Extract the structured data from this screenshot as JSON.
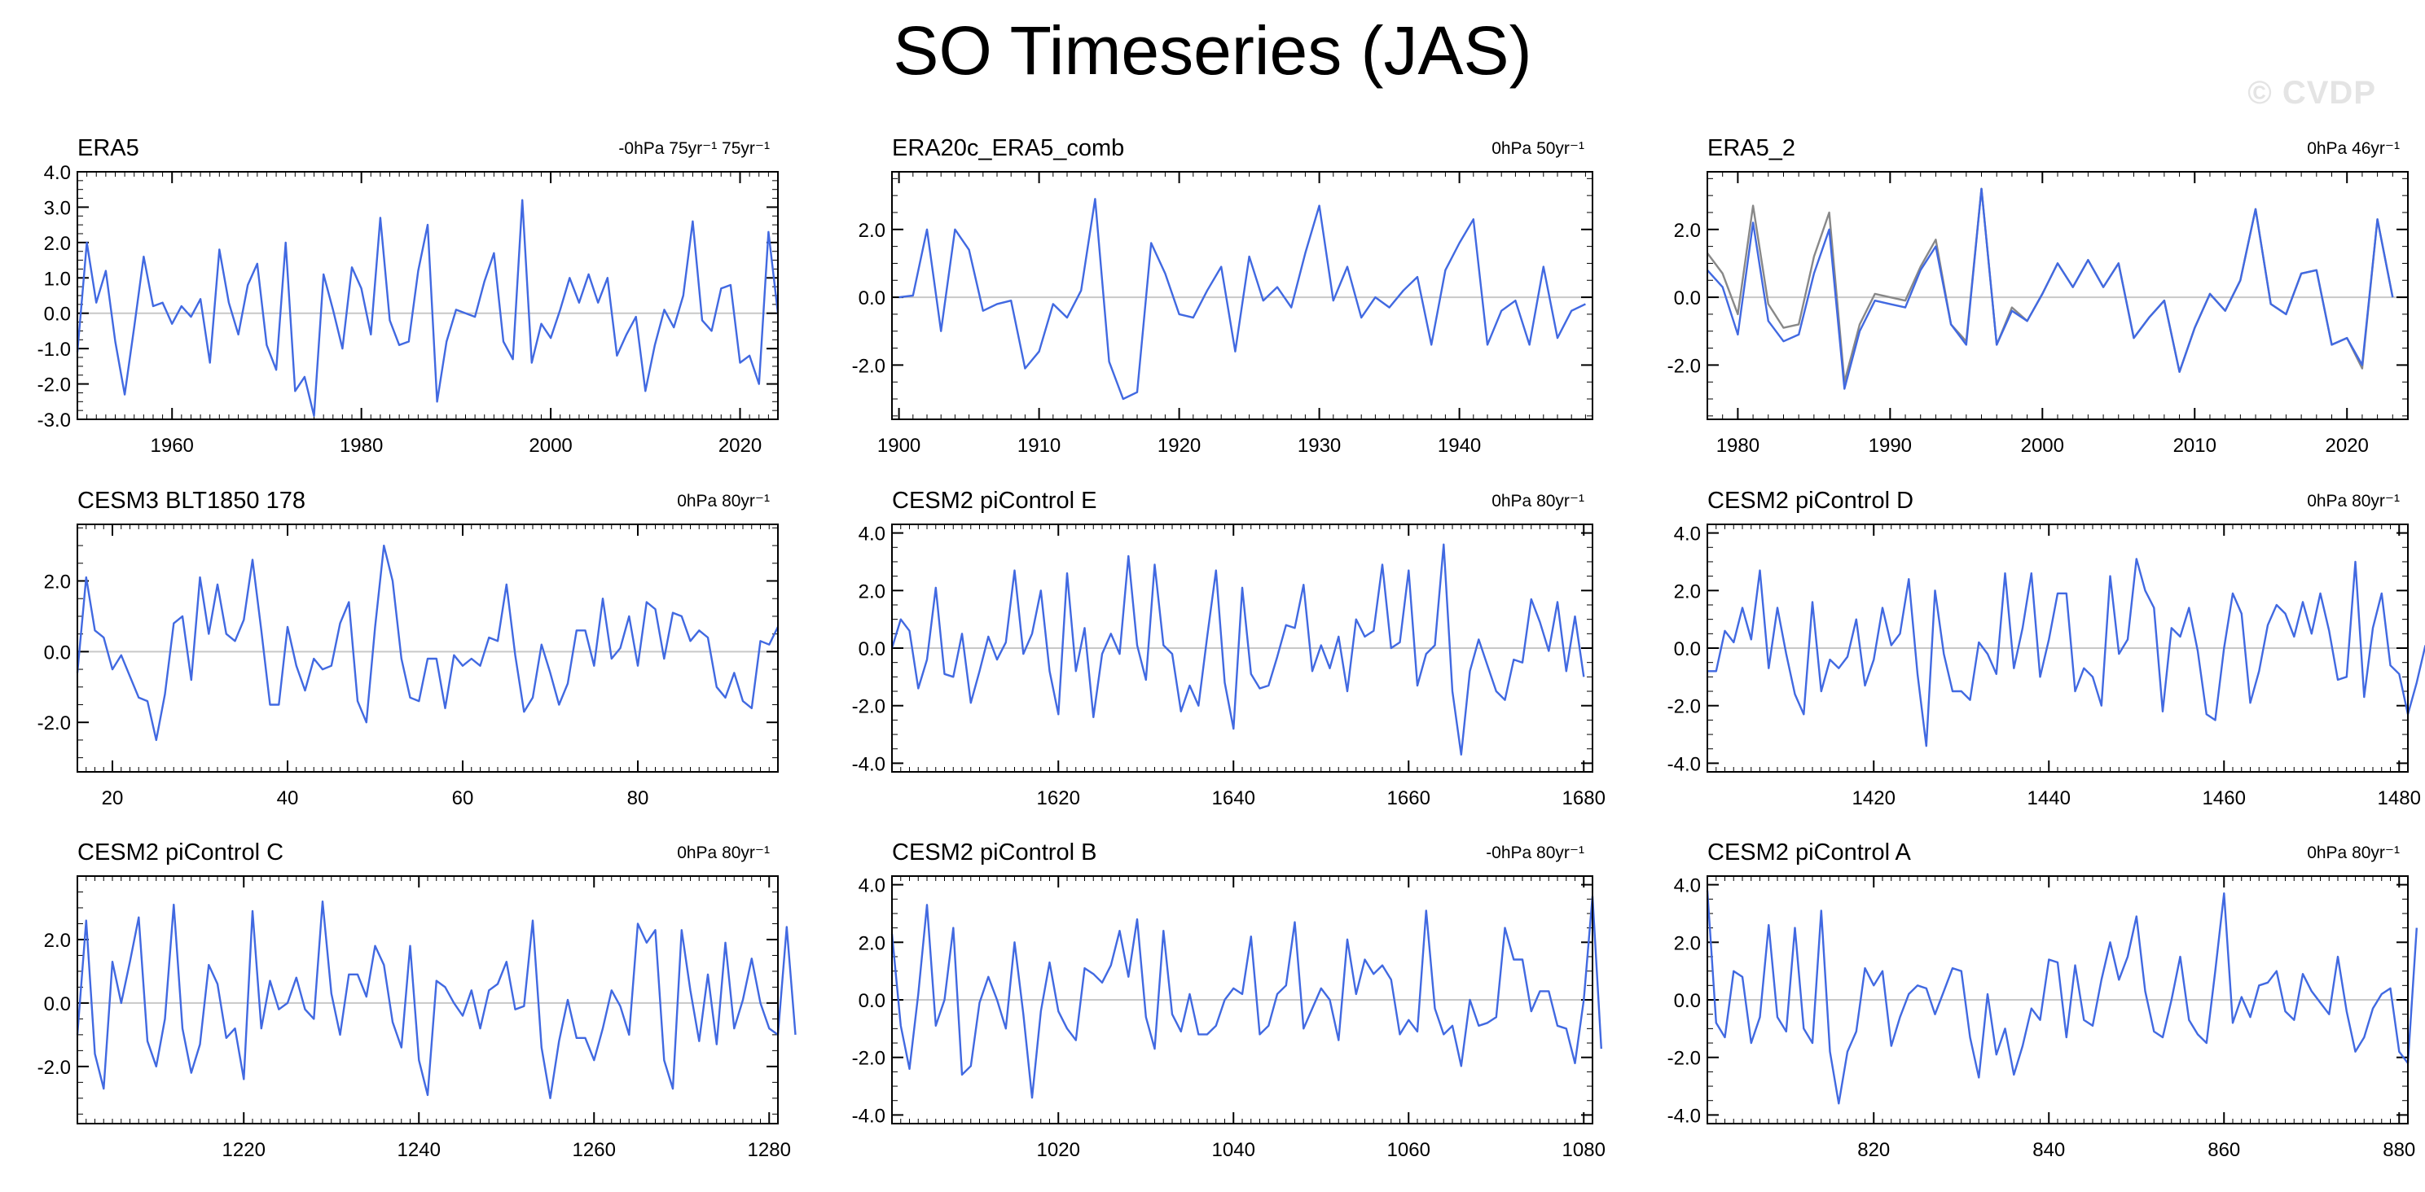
{
  "title": "SO Timeseries (JAS)",
  "watermark": "© CVDP",
  "colors": {
    "primary_line": "#4169e1",
    "secondary_line": "#888888",
    "zero_line": "#c8c8c8",
    "axis": "#000000"
  },
  "chart_data": [
    {
      "type": "line",
      "title": "ERA5",
      "subtitle_right": "-0hPa 75yr⁻¹ 75yr⁻¹",
      "xlim": [
        1950,
        2024
      ],
      "ylim": [
        -3,
        4
      ],
      "grid": false,
      "xticks": [
        1960,
        1980,
        2000,
        2020
      ],
      "xtick_labels": [
        "1960",
        "1980",
        "2000",
        "2020"
      ],
      "yticks": [
        -3,
        -2,
        -1,
        0,
        1,
        2,
        3,
        4
      ],
      "ytick_labels": [
        "-3.0",
        "-2.0",
        "-1.0",
        "0.0",
        "1.0",
        "2.0",
        "3.0",
        "4.0"
      ],
      "series": [
        {
          "name": "ERA5",
          "color": "#4169e1",
          "x_start": 1950,
          "x_step": 1,
          "values": [
            -1.1,
            2.0,
            0.3,
            1.2,
            -0.8,
            -2.3,
            -0.4,
            1.6,
            0.2,
            0.3,
            -0.3,
            0.2,
            -0.1,
            0.4,
            -1.4,
            1.8,
            0.3,
            -0.6,
            0.8,
            1.4,
            -0.9,
            -1.6,
            2.0,
            -2.2,
            -1.8,
            -2.9,
            1.1,
            0.1,
            -1.0,
            1.3,
            0.7,
            -0.6,
            2.7,
            -0.2,
            -0.9,
            -0.8,
            1.2,
            2.5,
            -2.5,
            -0.8,
            0.1,
            0.0,
            -0.1,
            0.9,
            1.7,
            -0.8,
            -1.3,
            3.2,
            -1.4,
            -0.3,
            -0.7,
            0.1,
            1.0,
            0.3,
            1.1,
            0.3,
            1.0,
            -1.2,
            -0.6,
            -0.1,
            -2.2,
            -0.9,
            0.1,
            -0.4,
            0.5,
            2.6,
            -0.2,
            -0.5,
            0.7,
            0.8,
            -1.4,
            -1.2,
            -2.0,
            2.3,
            0.0
          ]
        }
      ]
    },
    {
      "type": "line",
      "title": "ERA20c_ERA5_comb",
      "subtitle_right": "0hPa 50yr⁻¹",
      "xlim": [
        1899.5,
        1949.5
      ],
      "ylim": [
        -3.6,
        3.7
      ],
      "grid": false,
      "xticks": [
        1900,
        1910,
        1920,
        1930,
        1940
      ],
      "xtick_labels": [
        "1900",
        "1910",
        "1920",
        "1930",
        "1940"
      ],
      "yticks": [
        -2,
        0,
        2
      ],
      "ytick_labels": [
        "-2.0",
        "0.0",
        "2.0"
      ],
      "series": [
        {
          "name": "ERA20c_ERA5_comb",
          "color": "#4169e1",
          "x_start": 1900,
          "x_step": 1,
          "values": [
            0.0,
            0.05,
            2.0,
            -1.0,
            2.0,
            1.4,
            -0.4,
            -0.2,
            -0.1,
            -2.1,
            -1.6,
            -0.2,
            -0.6,
            0.2,
            2.9,
            -1.9,
            -3.0,
            -2.8,
            1.6,
            0.7,
            -0.5,
            -0.6,
            0.2,
            0.9,
            -1.6,
            1.2,
            -0.1,
            0.3,
            -0.3,
            1.3,
            2.7,
            -0.1,
            0.9,
            -0.6,
            0.0,
            -0.3,
            0.2,
            0.6,
            -1.4,
            0.8,
            1.6,
            2.3,
            -1.4,
            -0.4,
            -0.1,
            -1.4,
            0.9,
            -1.2,
            -0.4,
            -0.2
          ]
        }
      ]
    },
    {
      "type": "line",
      "title": "ERA5_2",
      "subtitle_right": "0hPa 46yr⁻¹",
      "xlim": [
        1978,
        2024
      ],
      "ylim": [
        -3.6,
        3.7
      ],
      "grid": false,
      "xticks": [
        1980,
        1990,
        2000,
        2010,
        2020
      ],
      "xtick_labels": [
        "1980",
        "1990",
        "2000",
        "2010",
        "2020"
      ],
      "yticks": [
        -2,
        0,
        2
      ],
      "ytick_labels": [
        "-2.0",
        "0.0",
        "2.0"
      ],
      "series": [
        {
          "name": "ERA5_2",
          "color": "#4169e1",
          "x_start": 1978,
          "x_step": 1,
          "values": [
            0.8,
            0.3,
            -1.1,
            2.2,
            -0.7,
            -1.3,
            -1.1,
            0.7,
            2.0,
            -2.7,
            -1.0,
            -0.1,
            -0.2,
            -0.3,
            0.8,
            1.5,
            -0.8,
            -1.4,
            3.2,
            -1.4,
            -0.4,
            -0.7,
            0.1,
            1.0,
            0.3,
            1.1,
            0.3,
            1.0,
            -1.2,
            -0.6,
            -0.1,
            -2.2,
            -0.9,
            0.1,
            -0.4,
            0.5,
            2.6,
            -0.2,
            -0.5,
            0.7,
            0.8,
            -1.4,
            -1.2,
            -2.0,
            2.3,
            0.0
          ]
        },
        {
          "name": "ERA5_2 overlay",
          "color": "#888888",
          "x_start": 1978,
          "x_step": 1,
          "values": [
            1.3,
            0.7,
            -0.5,
            2.7,
            -0.2,
            -0.9,
            -0.8,
            1.2,
            2.5,
            -2.5,
            -0.8,
            0.1,
            0.0,
            -0.1,
            0.9,
            1.7,
            -0.8,
            -1.3,
            3.2,
            -1.4,
            -0.3,
            -0.7,
            0.1,
            1.0,
            0.3,
            1.1,
            0.3,
            1.0,
            -1.2,
            -0.6,
            -0.1,
            -2.2,
            -0.9,
            0.1,
            -0.4,
            0.5,
            2.6,
            -0.2,
            -0.5,
            0.7,
            0.8,
            -1.4,
            -1.2,
            -2.1,
            2.3,
            0.0
          ]
        }
      ]
    },
    {
      "type": "line",
      "title": "CESM3 BLT1850 178",
      "subtitle_right": "0hPa 80yr⁻¹",
      "xlim": [
        16,
        96
      ],
      "ylim": [
        -3.4,
        3.6
      ],
      "grid": false,
      "xticks": [
        20,
        40,
        60,
        80
      ],
      "xtick_labels": [
        "20",
        "40",
        "60",
        "80"
      ],
      "yticks": [
        -2,
        0,
        2
      ],
      "ytick_labels": [
        "-2.0",
        "0.0",
        "2.0"
      ],
      "series": [
        {
          "name": "CESM3 BLT1850 178",
          "color": "#4169e1",
          "x_start": 16,
          "x_step": 1,
          "values": [
            -0.6,
            2.1,
            0.6,
            0.4,
            -0.5,
            -0.1,
            -0.7,
            -1.3,
            -1.4,
            -2.5,
            -1.2,
            0.8,
            1.0,
            -0.8,
            2.1,
            0.5,
            1.9,
            0.5,
            0.3,
            0.9,
            2.6,
            0.6,
            -1.5,
            -1.5,
            0.7,
            -0.4,
            -1.1,
            -0.2,
            -0.5,
            -0.4,
            0.8,
            1.4,
            -1.4,
            -2.0,
            0.7,
            3.0,
            2.0,
            -0.2,
            -1.3,
            -1.4,
            -0.2,
            -0.2,
            -1.6,
            -0.1,
            -0.4,
            -0.2,
            -0.4,
            0.4,
            0.3,
            1.9,
            -0.1,
            -1.7,
            -1.3,
            0.2,
            -0.6,
            -1.5,
            -0.9,
            0.6,
            0.6,
            -0.4,
            1.5,
            -0.2,
            0.1,
            1.0,
            -0.4,
            1.4,
            1.2,
            -0.2,
            1.1,
            1.0,
            0.3,
            0.6,
            0.4,
            -1.0,
            -1.3,
            -0.6,
            -1.4,
            -1.6,
            0.3,
            0.2,
            0.7
          ]
        }
      ]
    },
    {
      "type": "line",
      "title": "CESM2 piControl E",
      "subtitle_right": "0hPa 80yr⁻¹",
      "xlim": [
        1601,
        1681
      ],
      "ylim": [
        -4.3,
        4.3
      ],
      "grid": false,
      "xticks": [
        1620,
        1640,
        1660,
        1680
      ],
      "xtick_labels": [
        "1620",
        "1640",
        "1660",
        "1680"
      ],
      "yticks": [
        -4,
        -2,
        0,
        2,
        4
      ],
      "ytick_labels": [
        "-4.0",
        "-2.0",
        "0.0",
        "2.0",
        "4.0"
      ],
      "series": [
        {
          "name": "CESM2 piControl E",
          "color": "#4169e1",
          "x_start": 1601,
          "x_step": 1,
          "values": [
            0.0,
            1.0,
            0.6,
            -1.4,
            -0.4,
            2.1,
            -0.9,
            -1.0,
            0.5,
            -1.9,
            -0.8,
            0.4,
            -0.4,
            0.2,
            2.7,
            -0.2,
            0.5,
            2.0,
            -0.8,
            -2.3,
            2.6,
            -0.8,
            0.7,
            -2.4,
            -0.2,
            0.5,
            -0.2,
            3.2,
            0.1,
            -1.1,
            2.9,
            0.1,
            -0.2,
            -2.2,
            -1.3,
            -2.0,
            0.4,
            2.7,
            -1.2,
            -2.8,
            2.1,
            -0.9,
            -1.4,
            -1.3,
            -0.3,
            0.8,
            0.7,
            2.2,
            -0.8,
            0.1,
            -0.7,
            0.4,
            -1.5,
            1.0,
            0.4,
            0.6,
            2.9,
            0.0,
            0.2,
            2.7,
            -1.3,
            -0.2,
            0.1,
            3.6,
            -1.5,
            -3.7,
            -0.8,
            0.3,
            -0.6,
            -1.5,
            -1.8,
            -0.4,
            -0.5,
            1.7,
            0.9,
            -0.1,
            1.6,
            -0.8,
            1.1,
            -1.0
          ]
        }
      ]
    },
    {
      "type": "line",
      "title": "CESM2 piControl D",
      "subtitle_right": "0hPa 80yr⁻¹",
      "xlim": [
        1401,
        1481
      ],
      "ylim": [
        -4.3,
        4.3
      ],
      "grid": false,
      "xticks": [
        1420,
        1440,
        1460,
        1480
      ],
      "xtick_labels": [
        "1420",
        "1440",
        "1460",
        "1480"
      ],
      "yticks": [
        -4,
        -2,
        0,
        2,
        4
      ],
      "ytick_labels": [
        "-4.0",
        "-2.0",
        "0.0",
        "2.0",
        "4.0"
      ],
      "series": [
        {
          "name": "CESM2 piControl D",
          "color": "#4169e1",
          "x_start": 1401,
          "x_step": 1,
          "values": [
            -0.8,
            -0.8,
            0.6,
            0.2,
            1.4,
            0.3,
            2.7,
            -0.7,
            1.4,
            -0.2,
            -1.6,
            -2.3,
            1.6,
            -1.5,
            -0.4,
            -0.7,
            -0.3,
            1.0,
            -1.3,
            -0.4,
            1.4,
            0.1,
            0.5,
            2.4,
            -0.9,
            -3.4,
            2.0,
            -0.2,
            -1.5,
            -1.5,
            -1.8,
            0.2,
            -0.2,
            -0.9,
            2.6,
            -0.7,
            0.7,
            2.6,
            -1.0,
            0.3,
            1.9,
            1.9,
            -1.5,
            -0.7,
            -1.0,
            -2.0,
            2.5,
            -0.2,
            0.3,
            3.1,
            2.0,
            1.4,
            -2.2,
            0.7,
            0.4,
            1.4,
            -0.1,
            -2.3,
            -2.5,
            0.0,
            1.9,
            1.2,
            -1.9,
            -0.8,
            0.8,
            1.5,
            1.2,
            0.4,
            1.6,
            0.5,
            1.9,
            0.6,
            -1.1,
            -1.0,
            3.0,
            -1.7,
            0.7,
            1.9,
            -0.6,
            -0.9,
            -2.3,
            -1.2,
            0.1
          ]
        }
      ]
    },
    {
      "type": "line",
      "title": "CESM2 piControl C",
      "subtitle_right": "0hPa 80yr⁻¹",
      "xlim": [
        1201,
        1281
      ],
      "ylim": [
        -3.8,
        4.0
      ],
      "grid": false,
      "xticks": [
        1220,
        1240,
        1260,
        1280
      ],
      "xtick_labels": [
        "1220",
        "1240",
        "1260",
        "1280"
      ],
      "yticks": [
        -2,
        0,
        2
      ],
      "ytick_labels": [
        "-2.0",
        "0.0",
        "2.0"
      ],
      "series": [
        {
          "name": "CESM2 piControl C",
          "color": "#4169e1",
          "x_start": 1201,
          "x_step": 1,
          "values": [
            -1.0,
            2.6,
            -1.6,
            -2.7,
            1.3,
            0.0,
            1.3,
            2.7,
            -1.2,
            -2.0,
            -0.5,
            3.1,
            -0.8,
            -2.2,
            -1.3,
            1.2,
            0.6,
            -1.1,
            -0.8,
            -2.4,
            2.9,
            -0.8,
            0.7,
            -0.2,
            0.0,
            0.8,
            -0.2,
            -0.5,
            3.2,
            0.3,
            -1.0,
            0.9,
            0.9,
            0.2,
            1.8,
            1.2,
            -0.6,
            -1.4,
            1.8,
            -1.8,
            -2.9,
            0.7,
            0.5,
            0.0,
            -0.4,
            0.4,
            -0.8,
            0.4,
            0.6,
            1.3,
            -0.2,
            -0.1,
            2.6,
            -1.4,
            -3.0,
            -1.2,
            0.1,
            -1.1,
            -1.1,
            -1.8,
            -0.8,
            0.4,
            -0.1,
            -1.0,
            2.5,
            1.9,
            2.3,
            -1.8,
            -2.7,
            2.3,
            0.4,
            -1.2,
            0.9,
            -1.3,
            1.9,
            -0.8,
            0.1,
            1.4,
            0.0,
            -0.8,
            -1.0,
            2.4,
            -1.0
          ]
        }
      ]
    },
    {
      "type": "line",
      "title": "CESM2 piControl B",
      "subtitle_right": "-0hPa 80yr⁻¹",
      "xlim": [
        1001,
        1081
      ],
      "ylim": [
        -4.3,
        4.3
      ],
      "grid": false,
      "xticks": [
        1020,
        1040,
        1060,
        1080
      ],
      "xtick_labels": [
        "1020",
        "1040",
        "1060",
        "1080"
      ],
      "yticks": [
        -4,
        -2,
        0,
        2,
        4
      ],
      "ytick_labels": [
        "-4.0",
        "-2.0",
        "0.0",
        "2.0",
        "4.0"
      ],
      "series": [
        {
          "name": "CESM2 piControl B",
          "color": "#4169e1",
          "x_start": 1001,
          "x_step": 1,
          "values": [
            2.3,
            -0.9,
            -2.4,
            0.2,
            3.3,
            -0.9,
            0.0,
            2.5,
            -2.6,
            -2.3,
            -0.1,
            0.8,
            0.0,
            -1.0,
            2.0,
            -0.5,
            -3.4,
            -0.4,
            1.3,
            -0.4,
            -1.0,
            -1.4,
            1.1,
            0.9,
            0.6,
            1.2,
            2.4,
            0.8,
            2.8,
            -0.6,
            -1.7,
            2.4,
            -0.5,
            -1.1,
            0.2,
            -1.2,
            -1.2,
            -0.9,
            0.0,
            0.4,
            0.2,
            2.2,
            -1.2,
            -0.9,
            0.2,
            0.5,
            2.7,
            -1.0,
            -0.3,
            0.4,
            0.0,
            -1.4,
            2.1,
            0.2,
            1.4,
            0.9,
            1.2,
            0.7,
            -1.2,
            -0.7,
            -1.1,
            3.1,
            -0.3,
            -1.2,
            -0.9,
            -2.3,
            0.0,
            -0.9,
            -0.8,
            -0.6,
            2.5,
            1.4,
            1.4,
            -0.4,
            0.3,
            0.3,
            -0.9,
            -1.0,
            -2.2,
            0.0,
            3.6,
            -1.7
          ]
        }
      ]
    },
    {
      "type": "line",
      "title": "CESM2 piControl A",
      "subtitle_right": "0hPa 80yr⁻¹",
      "xlim": [
        801,
        881
      ],
      "ylim": [
        -4.3,
        4.3
      ],
      "grid": false,
      "xticks": [
        820,
        840,
        860,
        880
      ],
      "xtick_labels": [
        "820",
        "840",
        "860",
        "880"
      ],
      "yticks": [
        -4,
        -2,
        0,
        2,
        4
      ],
      "ytick_labels": [
        "-4.0",
        "-2.0",
        "0.0",
        "2.0",
        "4.0"
      ],
      "series": [
        {
          "name": "CESM2 piControl A",
          "color": "#4169e1",
          "x_start": 801,
          "x_step": 1,
          "values": [
            3.8,
            -0.8,
            -1.3,
            1.0,
            0.8,
            -1.5,
            -0.6,
            2.6,
            -0.6,
            -1.1,
            2.5,
            -1.0,
            -1.5,
            3.1,
            -1.8,
            -3.6,
            -1.8,
            -1.1,
            1.1,
            0.5,
            1.0,
            -1.6,
            -0.6,
            0.2,
            0.5,
            0.4,
            -0.5,
            0.3,
            1.1,
            1.0,
            -1.3,
            -2.7,
            0.2,
            -1.9,
            -1.0,
            -2.6,
            -1.6,
            -0.3,
            -0.7,
            1.4,
            1.3,
            -1.3,
            1.2,
            -0.7,
            -0.9,
            0.7,
            2.0,
            0.7,
            1.5,
            2.9,
            0.3,
            -1.1,
            -1.3,
            0.0,
            1.5,
            -0.7,
            -1.2,
            -1.5,
            1.0,
            3.7,
            -0.8,
            0.1,
            -0.6,
            0.5,
            0.6,
            1.0,
            -0.4,
            -0.7,
            0.9,
            0.3,
            -0.1,
            -0.5,
            1.5,
            -0.4,
            -1.8,
            -1.3,
            -0.3,
            0.2,
            0.4,
            -1.8,
            -2.2,
            2.5
          ]
        }
      ]
    }
  ]
}
